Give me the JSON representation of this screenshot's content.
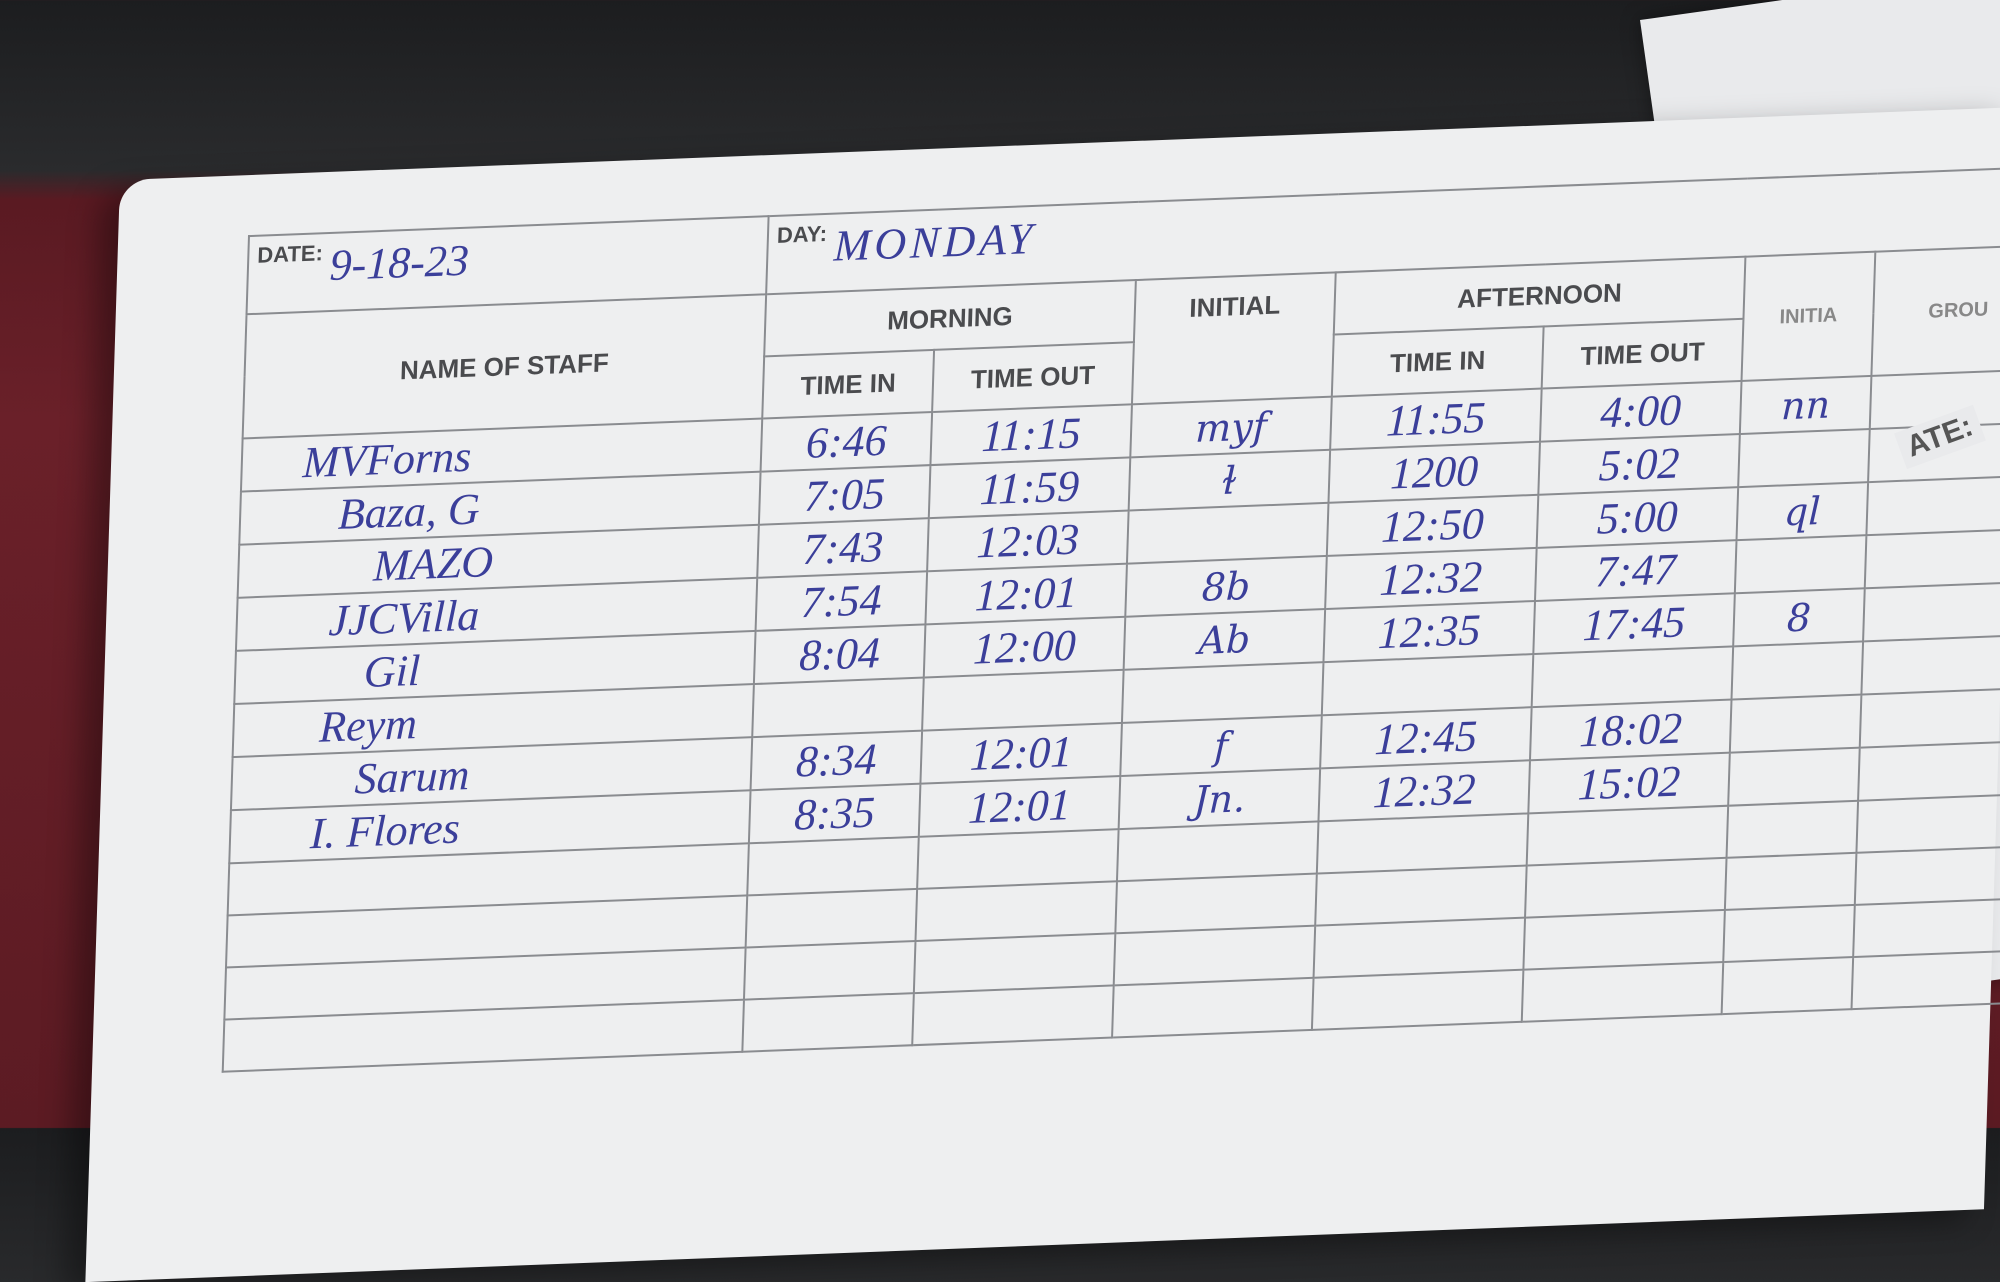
{
  "header": {
    "date_label": "DATE:",
    "date_value": "9-18-23",
    "day_label": "DAY:",
    "day_value": "MONDAY"
  },
  "columns": {
    "name": "NAME OF STAFF",
    "morning": "MORNING",
    "morning_in": "TIME IN",
    "morning_out": "TIME OUT",
    "initial": "INITIAL",
    "afternoon": "AFTERNOON",
    "afternoon_in": "TIME IN",
    "afternoon_out": "TIME OUT",
    "group": "GROU",
    "initial2": "INITIA"
  },
  "side_paper_label": "ATE:",
  "rows": [
    {
      "name": "MVForns",
      "am_in": "6:46",
      "am_out": "11:15",
      "initial": "myf",
      "pm_in": "11:55",
      "pm_out": "4:00",
      "initial2": "nn"
    },
    {
      "name": "Baza, G",
      "am_in": "7:05",
      "am_out": "11:59",
      "initial": "ɫ",
      "pm_in": "1200",
      "pm_out": "5:02",
      "initial2": ""
    },
    {
      "name": "MAZO",
      "am_in": "7:43",
      "am_out": "12:03",
      "initial": "",
      "pm_in": "12:50",
      "pm_out": "5:00",
      "initial2": "ql"
    },
    {
      "name": "JJCVilla",
      "am_in": "7:54",
      "am_out": "12:01",
      "initial": "8b",
      "pm_in": "12:32",
      "pm_out": "7:47",
      "initial2": ""
    },
    {
      "name": "Gil",
      "am_in": "8:04",
      "am_out": "12:00",
      "initial": "Ab",
      "pm_in": "12:35",
      "pm_out": "17:45",
      "initial2": "8"
    },
    {
      "name": "Reym",
      "am_in": "",
      "am_out": "",
      "initial": "",
      "pm_in": "",
      "pm_out": "",
      "initial2": ""
    },
    {
      "name": "Sarum",
      "am_in": "8:34",
      "am_out": "12:01",
      "initial": "f",
      "pm_in": "12:45",
      "pm_out": "18:02",
      "initial2": ""
    },
    {
      "name": "I. Flores",
      "am_in": "8:35",
      "am_out": "12:01",
      "initial": "Jn.",
      "pm_in": "12:32",
      "pm_out": "15:02",
      "initial2": ""
    },
    {
      "name": "",
      "am_in": "",
      "am_out": "",
      "initial": "",
      "pm_in": "",
      "pm_out": "",
      "initial2": ""
    },
    {
      "name": "",
      "am_in": "",
      "am_out": "",
      "initial": "",
      "pm_in": "",
      "pm_out": "",
      "initial2": ""
    },
    {
      "name": "",
      "am_in": "",
      "am_out": "",
      "initial": "",
      "pm_in": "",
      "pm_out": "",
      "initial2": ""
    },
    {
      "name": "",
      "am_in": "",
      "am_out": "",
      "initial": "",
      "pm_in": "",
      "pm_out": "",
      "initial2": ""
    }
  ],
  "colors": {
    "ink": "#3b3f9a",
    "paper": "#eeeff0",
    "desk": "#6a2029",
    "rule": "#8a8c90"
  }
}
